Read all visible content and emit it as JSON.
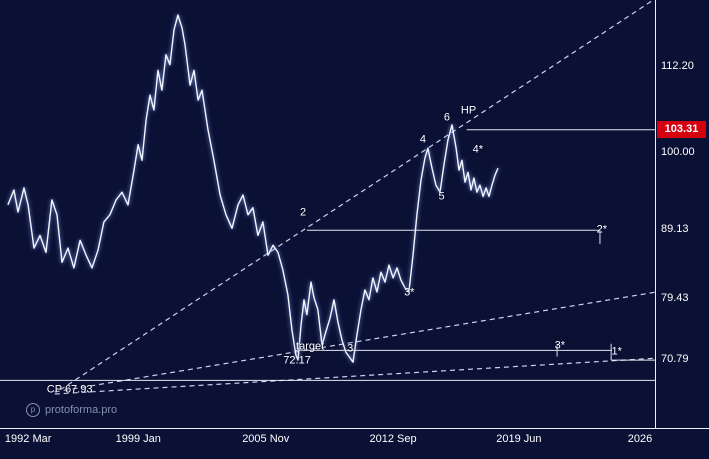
{
  "watermark": {
    "icon": "p",
    "text": "protoforma.pro"
  },
  "colors": {
    "background": "#0b1035",
    "price_line": "#f2f6ff",
    "dashed_line": "#e2eaff",
    "level_line": "#f0f4ff",
    "axis_text": "#ffffff",
    "highlight_bg": "#d40010",
    "watermark_text": "#afbad4"
  },
  "y_axis": {
    "labels": [
      {
        "text": "112.20",
        "price": 112.2,
        "highlight": false
      },
      {
        "text": "103.31",
        "price": 103.31,
        "highlight": true
      },
      {
        "text": "100.00",
        "price": 100.0,
        "highlight": false
      },
      {
        "text": "89.13",
        "price": 89.13,
        "highlight": false
      },
      {
        "text": "79.43",
        "price": 79.43,
        "highlight": false
      },
      {
        "text": "70.79",
        "price": 70.79,
        "highlight": false
      }
    ]
  },
  "x_axis": {
    "labels": [
      {
        "text": "1992 Mar",
        "year": 1992.25,
        "align": "left"
      },
      {
        "text": "1999 Jan",
        "year": 1999.08,
        "align": "center"
      },
      {
        "text": "2005 Nov",
        "year": 2005.92,
        "align": "center"
      },
      {
        "text": "2012 Sep",
        "year": 2012.75,
        "align": "center"
      },
      {
        "text": "2019 Jun",
        "year": 2019.5,
        "align": "center"
      },
      {
        "text": "2026",
        "year": 2026.0,
        "align": "center"
      }
    ]
  },
  "chart_data": {
    "type": "line",
    "title": "",
    "x_unit": "year",
    "y_unit": "price",
    "xlim": [
      1991.6,
      2026.9
    ],
    "ylim": [
      65.5,
      122.5
    ],
    "grid": false,
    "legend": "none",
    "series": [
      {
        "name": "price",
        "points": [
          [
            1992.09,
            92.7
          ],
          [
            1992.41,
            94.8
          ],
          [
            1992.63,
            91.7
          ],
          [
            1992.95,
            95.1
          ],
          [
            1993.17,
            92.7
          ],
          [
            1993.49,
            86.6
          ],
          [
            1993.81,
            88.4
          ],
          [
            1994.13,
            86.0
          ],
          [
            1994.45,
            93.4
          ],
          [
            1994.72,
            91.3
          ],
          [
            1994.99,
            84.6
          ],
          [
            1995.31,
            86.6
          ],
          [
            1995.63,
            83.8
          ],
          [
            1995.96,
            87.7
          ],
          [
            1996.28,
            85.6
          ],
          [
            1996.6,
            83.8
          ],
          [
            1996.92,
            86.3
          ],
          [
            1997.24,
            90.3
          ],
          [
            1997.56,
            91.3
          ],
          [
            1997.89,
            93.4
          ],
          [
            1998.21,
            94.5
          ],
          [
            1998.53,
            92.7
          ],
          [
            1998.85,
            97.6
          ],
          [
            1999.07,
            101.2
          ],
          [
            1999.28,
            99.0
          ],
          [
            1999.5,
            104.7
          ],
          [
            1999.71,
            108.2
          ],
          [
            1999.92,
            106.1
          ],
          [
            2000.14,
            111.7
          ],
          [
            2000.35,
            108.9
          ],
          [
            2000.57,
            113.9
          ],
          [
            2000.78,
            112.5
          ],
          [
            2001.0,
            117.4
          ],
          [
            2001.21,
            119.5
          ],
          [
            2001.43,
            117.7
          ],
          [
            2001.59,
            115.3
          ],
          [
            2001.86,
            109.6
          ],
          [
            2002.07,
            111.7
          ],
          [
            2002.29,
            107.5
          ],
          [
            2002.5,
            108.9
          ],
          [
            2002.82,
            103.3
          ],
          [
            2003.14,
            99.0
          ],
          [
            2003.47,
            94.1
          ],
          [
            2003.79,
            91.3
          ],
          [
            2004.11,
            89.4
          ],
          [
            2004.43,
            92.7
          ],
          [
            2004.7,
            94.1
          ],
          [
            2004.97,
            91.3
          ],
          [
            2005.23,
            92.3
          ],
          [
            2005.5,
            88.4
          ],
          [
            2005.77,
            90.3
          ],
          [
            2006.04,
            85.6
          ],
          [
            2006.31,
            87.0
          ],
          [
            2006.58,
            86.0
          ],
          [
            2006.84,
            83.5
          ],
          [
            2007.11,
            80.0
          ],
          [
            2007.33,
            75.0
          ],
          [
            2007.54,
            71.5
          ],
          [
            2007.65,
            70.8
          ],
          [
            2007.81,
            75.7
          ],
          [
            2007.97,
            79.3
          ],
          [
            2008.13,
            77.2
          ],
          [
            2008.35,
            81.8
          ],
          [
            2008.51,
            79.6
          ],
          [
            2008.72,
            77.9
          ],
          [
            2008.94,
            72.9
          ],
          [
            2009.15,
            74.8
          ],
          [
            2009.37,
            76.7
          ],
          [
            2009.58,
            79.3
          ],
          [
            2009.79,
            76.2
          ],
          [
            2010.01,
            73.6
          ],
          [
            2010.22,
            71.9
          ],
          [
            2010.44,
            71.1
          ],
          [
            2010.6,
            70.5
          ],
          [
            2010.81,
            74.3
          ],
          [
            2011.03,
            77.9
          ],
          [
            2011.24,
            80.7
          ],
          [
            2011.46,
            79.3
          ],
          [
            2011.67,
            82.4
          ],
          [
            2011.89,
            80.4
          ],
          [
            2012.1,
            83.2
          ],
          [
            2012.32,
            81.8
          ],
          [
            2012.53,
            84.2
          ],
          [
            2012.75,
            82.4
          ],
          [
            2012.96,
            83.8
          ],
          [
            2013.17,
            82.1
          ],
          [
            2013.39,
            81.0
          ],
          [
            2013.6,
            80.4
          ],
          [
            2013.82,
            85.6
          ],
          [
            2014.03,
            91.3
          ],
          [
            2014.25,
            96.2
          ],
          [
            2014.46,
            99.3
          ],
          [
            2014.62,
            100.7
          ],
          [
            2014.84,
            97.9
          ],
          [
            2015.05,
            95.5
          ],
          [
            2015.27,
            94.5
          ],
          [
            2015.48,
            98.3
          ],
          [
            2015.7,
            101.9
          ],
          [
            2015.91,
            104.0
          ],
          [
            2016.13,
            100.7
          ],
          [
            2016.29,
            97.6
          ],
          [
            2016.45,
            99.0
          ],
          [
            2016.61,
            95.9
          ],
          [
            2016.77,
            97.3
          ],
          [
            2016.93,
            94.8
          ],
          [
            2017.09,
            96.5
          ],
          [
            2017.25,
            94.5
          ],
          [
            2017.41,
            95.5
          ],
          [
            2017.58,
            93.9
          ],
          [
            2017.74,
            95.1
          ],
          [
            2017.9,
            93.9
          ],
          [
            2018.06,
            95.5
          ],
          [
            2018.22,
            96.9
          ],
          [
            2018.38,
            97.9
          ]
        ]
      }
    ],
    "levels": [
      {
        "name": "HP",
        "price": 103.31,
        "from": 2016.7,
        "to": 2026.9
      },
      {
        "name": "2-star",
        "price": 89.13,
        "from": 2008.13,
        "to": 2023.85
      },
      {
        "name": "target",
        "price": 72.17,
        "from": 2007.5,
        "to": 2024.5
      },
      {
        "name": "1-star",
        "price": 70.79,
        "from": 2024.45,
        "to": 2026.9
      },
      {
        "name": "CP",
        "price": 67.93,
        "from": 1991.6,
        "to": 2026.9
      }
    ],
    "ticks": [
      {
        "year": 2023.85,
        "p1": 89.13,
        "p2": 87.2
      },
      {
        "year": 2021.55,
        "p1": 73.1,
        "p2": 71.3
      },
      {
        "year": 2024.45,
        "p1": 73.1,
        "p2": 70.79
      }
    ],
    "trendlines": [
      {
        "name": "fan-steep",
        "x1": 1994.9,
        "y1": 66.6,
        "x2": 2027.1,
        "y2": 122.3
      },
      {
        "name": "fan-mid",
        "x1": 1994.6,
        "y1": 66.3,
        "x2": 2027.1,
        "y2": 80.5
      },
      {
        "name": "fan-low",
        "x1": 1994.6,
        "y1": 66.0,
        "x2": 2027.1,
        "y2": 71.1
      }
    ],
    "annotations": [
      {
        "text": "2",
        "year": 2007.92,
        "price": 91.6
      },
      {
        "text": "4",
        "year": 2014.35,
        "price": 101.9
      },
      {
        "text": "6",
        "year": 2015.64,
        "price": 105.0
      },
      {
        "text": "HP",
        "year": 2016.8,
        "price": 105.9
      },
      {
        "text": "4*",
        "year": 2017.3,
        "price": 100.4
      },
      {
        "text": "5",
        "year": 2015.35,
        "price": 93.8
      },
      {
        "text": "3*",
        "year": 2013.62,
        "price": 80.2
      },
      {
        "text": "2*",
        "year": 2023.95,
        "price": 89.2
      },
      {
        "text": "target",
        "year": 2008.3,
        "price": 72.7
      },
      {
        "text": "72.17",
        "year": 2007.6,
        "price": 70.6
      },
      {
        "text": "3",
        "year": 2010.45,
        "price": 72.3
      },
      {
        "text": "3*",
        "year": 2021.7,
        "price": 72.8
      },
      {
        "text": "1*",
        "year": 2024.75,
        "price": 71.9
      },
      {
        "text": "CP 67.93",
        "year": 1995.4,
        "price": 66.6
      }
    ]
  }
}
